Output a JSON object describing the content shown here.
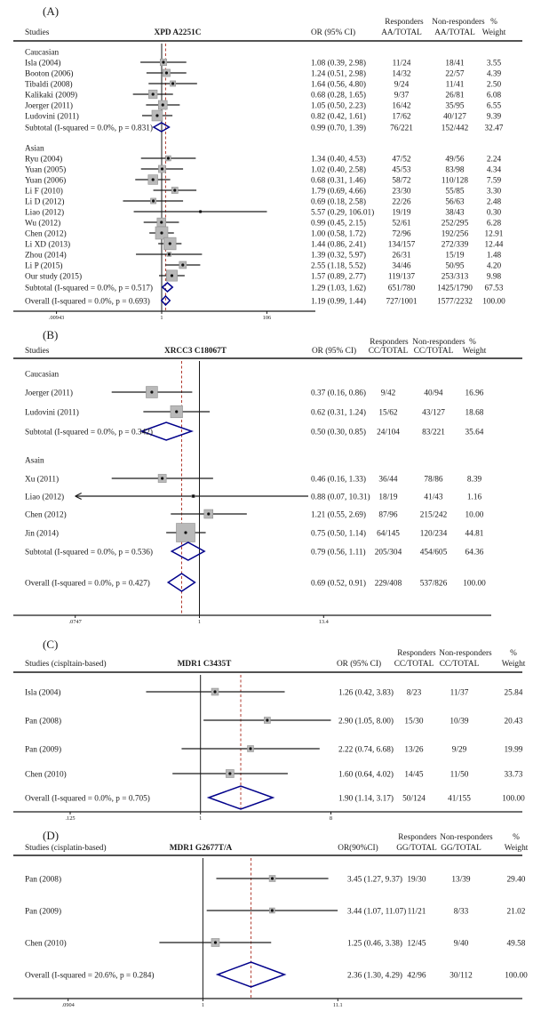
{
  "colors": {
    "diamond": "#00008b",
    "dashed": "#b03a2e",
    "square": "#b9b9b9",
    "line": "#1a1a1a"
  },
  "chart_data": {
    "type": "forest",
    "panels": [
      {
        "id": "A",
        "panel_label": "(A)",
        "gene": "XPD A2251C",
        "columns": {
          "studies": "Studies",
          "or": "OR (95% CI)",
          "responders": "Responders",
          "nonresponders": "Non-responders",
          "percent": "%",
          "resp_sub": "AA/TOTAL",
          "nonresp_sub": "AA/TOTAL",
          "weight": "Weight"
        },
        "axis_ticks": [
          ".00943",
          "1",
          "106"
        ],
        "rows": [
          {
            "type": "section",
            "label": "Caucasian"
          },
          {
            "type": "study",
            "label": "Isla (2004)",
            "or": 1.08,
            "lo": 0.39,
            "hi": 2.98,
            "or_text": "1.08 (0.39, 2.98)",
            "resp": "11/24",
            "nonresp": "18/41",
            "weight": "3.55"
          },
          {
            "type": "study",
            "label": "Booton (2006)",
            "or": 1.24,
            "lo": 0.51,
            "hi": 2.98,
            "or_text": "1.24 (0.51, 2.98)",
            "resp": "14/32",
            "nonresp": "22/57",
            "weight": "4.39"
          },
          {
            "type": "study",
            "label": "Tibaldi (2008)",
            "or": 1.64,
            "lo": 0.56,
            "hi": 4.8,
            "or_text": "1.64 (0.56, 4.80)",
            "resp": "9/24",
            "nonresp": "11/41",
            "weight": "2.50"
          },
          {
            "type": "study",
            "label": "Kalikaki (2009)",
            "or": 0.68,
            "lo": 0.28,
            "hi": 1.65,
            "or_text": "0.68 (0.28, 1.65)",
            "resp": "9/37",
            "nonresp": "26/81",
            "weight": "6.08"
          },
          {
            "type": "study",
            "label": "Joerger (2011)",
            "or": 1.05,
            "lo": 0.5,
            "hi": 2.23,
            "or_text": "1.05 (0.50, 2.23)",
            "resp": "16/42",
            "nonresp": "35/95",
            "weight": "6.55"
          },
          {
            "type": "study",
            "label": "Ludovini (2011)",
            "or": 0.82,
            "lo": 0.42,
            "hi": 1.61,
            "or_text": "0.82 (0.42, 1.61)",
            "resp": "17/62",
            "nonresp": "40/127",
            "weight": "9.39"
          },
          {
            "type": "subtotal",
            "label": "Subtotal  (I-squared = 0.0%, p = 0.831)",
            "or": 0.99,
            "lo": 0.7,
            "hi": 1.39,
            "or_text": "0.99 (0.70, 1.39)",
            "resp": "76/221",
            "nonresp": "152/442",
            "weight": "32.47"
          },
          {
            "type": "section",
            "label": "Asian"
          },
          {
            "type": "study",
            "label": "Ryu (2004)",
            "or": 1.34,
            "lo": 0.4,
            "hi": 4.53,
            "or_text": "1.34 (0.40, 4.53)",
            "resp": "47/52",
            "nonresp": "49/56",
            "weight": "2.24"
          },
          {
            "type": "study",
            "label": "Yuan (2005)",
            "or": 1.02,
            "lo": 0.4,
            "hi": 2.58,
            "or_text": "1.02 (0.40, 2.58)",
            "resp": "45/53",
            "nonresp": "83/98",
            "weight": "4.34"
          },
          {
            "type": "study",
            "label": "Yuan (2006)",
            "or": 0.68,
            "lo": 0.31,
            "hi": 1.46,
            "or_text": "0.68 (0.31, 1.46)",
            "resp": "58/72",
            "nonresp": "110/128",
            "weight": "7.59"
          },
          {
            "type": "study",
            "label": "Li F (2010)",
            "or": 1.79,
            "lo": 0.69,
            "hi": 4.66,
            "or_text": "1.79 (0.69, 4.66)",
            "resp": "23/30",
            "nonresp": "55/85",
            "weight": "3.30"
          },
          {
            "type": "study",
            "label": "Li D (2012)",
            "or": 0.69,
            "lo": 0.18,
            "hi": 2.58,
            "or_text": "0.69 (0.18, 2.58)",
            "resp": "22/26",
            "nonresp": "56/63",
            "weight": "2.48"
          },
          {
            "type": "study",
            "label": "Liao (2012)",
            "or": 5.57,
            "lo": 0.29,
            "hi": 106.01,
            "or_text": "5.57 (0.29, 106.01)",
            "resp": "19/19",
            "nonresp": "38/43",
            "weight": "0.30"
          },
          {
            "type": "study",
            "label": "Wu (2012)",
            "or": 0.99,
            "lo": 0.45,
            "hi": 2.15,
            "or_text": "0.99 (0.45, 2.15)",
            "resp": "52/61",
            "nonresp": "252/295",
            "weight": "6.28"
          },
          {
            "type": "study",
            "label": "Chen (2012)",
            "or": 1.0,
            "lo": 0.58,
            "hi": 1.72,
            "or_text": "1.00 (0.58, 1.72)",
            "resp": "72/96",
            "nonresp": "192/256",
            "weight": "12.91"
          },
          {
            "type": "study",
            "label": "Li XD (2013)",
            "or": 1.44,
            "lo": 0.86,
            "hi": 2.41,
            "or_text": "1.44 (0.86, 2.41)",
            "resp": "134/157",
            "nonresp": "272/339",
            "weight": "12.44"
          },
          {
            "type": "study",
            "label": "Zhou (2014)",
            "or": 1.39,
            "lo": 0.32,
            "hi": 5.97,
            "or_text": "1.39 (0.32, 5.97)",
            "resp": "26/31",
            "nonresp": "15/19",
            "weight": "1.48"
          },
          {
            "type": "study",
            "label": "Li P (2015)",
            "or": 2.55,
            "lo": 1.18,
            "hi": 5.52,
            "or_text": "2.55 (1.18, 5.52)",
            "resp": "34/46",
            "nonresp": "50/95",
            "weight": "4.20"
          },
          {
            "type": "study",
            "label": "Our study (2015)",
            "or": 1.57,
            "lo": 0.89,
            "hi": 2.77,
            "or_text": "1.57 (0.89, 2.77)",
            "resp": "119/137",
            "nonresp": "253/313",
            "weight": "9.98"
          },
          {
            "type": "subtotal",
            "label": "Subtotal  (I-squared = 0.0%, p = 0.517)",
            "or": 1.29,
            "lo": 1.03,
            "hi": 1.62,
            "or_text": "1.29 (1.03, 1.62)",
            "resp": "651/780",
            "nonresp": "1425/1790",
            "weight": "67.53"
          },
          {
            "type": "overall",
            "label": "Overall  (I-squared = 0.0%, p = 0.693)",
            "or": 1.19,
            "lo": 0.99,
            "hi": 1.44,
            "or_text": "1.19 (0.99, 1.44)",
            "resp": "727/1001",
            "nonresp": "1577/2232",
            "weight": "100.00"
          }
        ]
      },
      {
        "id": "B",
        "panel_label": "(B)",
        "gene": "XRCC3 C18067T",
        "columns": {
          "studies": "Studies",
          "or": "OR (95% CI)",
          "responders": "Responders",
          "nonresponders": "Non-responders",
          "percent": "%",
          "resp_sub": "CC/TOTAL",
          "nonresp_sub": "CC/TOTAL",
          "weight": "Weight"
        },
        "axis_ticks": [
          ".0747",
          "1",
          "13.4"
        ],
        "rows": [
          {
            "type": "section",
            "label": "Caucasian"
          },
          {
            "type": "study",
            "label": "Joerger (2011)",
            "or": 0.37,
            "lo": 0.16,
            "hi": 0.86,
            "or_text": "0.37 (0.16, 0.86)",
            "resp": "9/42",
            "nonresp": "40/94",
            "weight": "16.96"
          },
          {
            "type": "study",
            "label": "Ludovini (2011)",
            "or": 0.62,
            "lo": 0.31,
            "hi": 1.24,
            "or_text": "0.62 (0.31, 1.24)",
            "resp": "15/62",
            "nonresp": "43/127",
            "weight": "18.68"
          },
          {
            "type": "subtotal",
            "label": "Subtotal  (I-squared = 0.0%, p = 0.342)",
            "or": 0.5,
            "lo": 0.3,
            "hi": 0.85,
            "or_text": "0.50 (0.30, 0.85)",
            "resp": "24/104",
            "nonresp": "83/221",
            "weight": "35.64"
          },
          {
            "type": "section",
            "label": "Asain"
          },
          {
            "type": "study",
            "label": "Xu (2011)",
            "or": 0.46,
            "lo": 0.16,
            "hi": 1.33,
            "or_text": "0.46 (0.16, 1.33)",
            "resp": "36/44",
            "nonresp": "78/86",
            "weight": "8.39"
          },
          {
            "type": "study",
            "label": "Liao (2012)",
            "or": 0.88,
            "lo": 0.07,
            "hi": 10.31,
            "or_text": "0.88 (0.07, 10.31)",
            "resp": "18/19",
            "nonresp": "41/43",
            "weight": "1.16",
            "clip_lo": true
          },
          {
            "type": "study",
            "label": "Chen (2012)",
            "or": 1.21,
            "lo": 0.55,
            "hi": 2.69,
            "or_text": "1.21 (0.55, 2.69)",
            "resp": "87/96",
            "nonresp": "215/242",
            "weight": "10.00"
          },
          {
            "type": "study",
            "label": "Jin (2014)",
            "or": 0.75,
            "lo": 0.5,
            "hi": 1.14,
            "or_text": "0.75 (0.50, 1.14)",
            "resp": "64/145",
            "nonresp": "120/234",
            "weight": "44.81"
          },
          {
            "type": "subtotal",
            "label": "Subtotal  (I-squared = 0.0%, p = 0.536)",
            "or": 0.79,
            "lo": 0.56,
            "hi": 1.11,
            "or_text": "0.79 (0.56, 1.11)",
            "resp": "205/304",
            "nonresp": "454/605",
            "weight": "64.36"
          },
          {
            "type": "overall",
            "label": "Overall  (I-squared = 0.0%, p = 0.427)",
            "or": 0.69,
            "lo": 0.52,
            "hi": 0.91,
            "or_text": "0.69 (0.52, 0.91)",
            "resp": "229/408",
            "nonresp": "537/826",
            "weight": "100.00"
          }
        ]
      },
      {
        "id": "C",
        "panel_label": "(C)",
        "gene": "MDR1 C3435T",
        "columns": {
          "studies": "Studies (cispltain-based)",
          "or": "OR (95% CI)",
          "responders": "Responders",
          "nonresponders": "Non-responders",
          "percent": "%",
          "resp_sub": "CC/TOTAL",
          "nonresp_sub": "CC/TOTAL",
          "weight": "Weight"
        },
        "axis_ticks": [
          ".125",
          "1",
          "8"
        ],
        "rows": [
          {
            "type": "study",
            "label": "Isla (2004)",
            "or": 1.26,
            "lo": 0.42,
            "hi": 3.83,
            "or_text": "1.26 (0.42, 3.83)",
            "resp": "8/23",
            "nonresp": "11/37",
            "weight": "25.84"
          },
          {
            "type": "study",
            "label": "Pan (2008)",
            "or": 2.9,
            "lo": 1.05,
            "hi": 8.0,
            "or_text": "2.90 (1.05, 8.00)",
            "resp": "15/30",
            "nonresp": "10/39",
            "weight": "20.43"
          },
          {
            "type": "study",
            "label": "Pan (2009)",
            "or": 2.22,
            "lo": 0.74,
            "hi": 6.68,
            "or_text": "2.22 (0.74, 6.68)",
            "resp": "13/26",
            "nonresp": "9/29",
            "weight": "19.99"
          },
          {
            "type": "study",
            "label": "Chen (2010)",
            "or": 1.6,
            "lo": 0.64,
            "hi": 4.02,
            "or_text": "1.60 (0.64, 4.02)",
            "resp": "14/45",
            "nonresp": "11/50",
            "weight": "33.73"
          },
          {
            "type": "overall",
            "label": "Overall  (I-squared = 0.0%, p = 0.705)",
            "or": 1.9,
            "lo": 1.14,
            "hi": 3.17,
            "or_text": "1.90 (1.14, 3.17)",
            "resp": "50/124",
            "nonresp": "41/155",
            "weight": "100.00"
          }
        ]
      },
      {
        "id": "D",
        "panel_label": "(D)",
        "gene": "MDR1 G2677T/A",
        "columns": {
          "studies": "Studies (cisplatin-based)",
          "or": "OR(90%CI)",
          "responders": "Responders",
          "nonresponders": "Non-responders",
          "percent": "%",
          "resp_sub": "GG/TOTAL",
          "nonresp_sub": "GG/TOTAL",
          "weight": "Weight"
        },
        "axis_ticks": [
          ".0904",
          "1",
          "11.1"
        ],
        "rows": [
          {
            "type": "study",
            "label": "Pan (2008)",
            "or": 3.45,
            "lo": 1.27,
            "hi": 9.37,
            "or_text": "3.45 (1.27, 9.37)",
            "resp": "19/30",
            "nonresp": "13/39",
            "weight": "29.40"
          },
          {
            "type": "study",
            "label": "Pan (2009)",
            "or": 3.44,
            "lo": 1.07,
            "hi": 11.07,
            "or_text": "3.44 (1.07, 11.07)",
            "resp": "11/21",
            "nonresp": "8/33",
            "weight": "21.02"
          },
          {
            "type": "study",
            "label": "Chen (2010)",
            "or": 1.25,
            "lo": 0.46,
            "hi": 3.38,
            "or_text": "1.25 (0.46, 3.38)",
            "resp": "12/45",
            "nonresp": "9/40",
            "weight": "49.58"
          },
          {
            "type": "overall",
            "label": "Overall  (I-squared = 20.6%, p = 0.284)",
            "or": 2.36,
            "lo": 1.3,
            "hi": 4.29,
            "or_text": "2.36 (1.30, 4.29)",
            "resp": "42/96",
            "nonresp": "30/112",
            "weight": "100.00"
          }
        ]
      }
    ]
  }
}
